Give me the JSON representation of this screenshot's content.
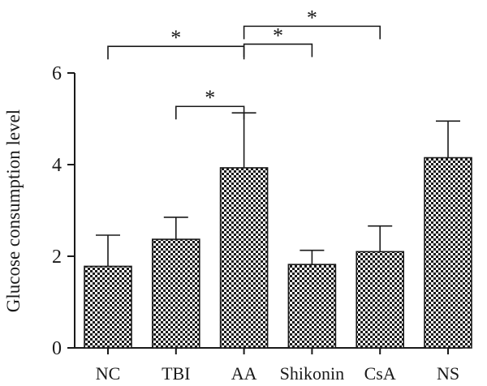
{
  "chart_data": {
    "type": "bar",
    "ylabel": "Glucose consumption level",
    "categories": [
      "NC",
      "TBI",
      "AA",
      "Shikonin",
      "CsA",
      "NS"
    ],
    "values": [
      1.78,
      2.37,
      3.93,
      1.82,
      2.1,
      4.15
    ],
    "error": [
      0.68,
      0.48,
      1.2,
      0.31,
      0.56,
      0.8
    ],
    "ylim": [
      0,
      6
    ],
    "yticks": [
      0,
      2,
      4,
      6
    ],
    "grid": false,
    "bar_pattern": "checkerboard",
    "bar_color": "#1a1a1a",
    "significance": [
      {
        "from": "NC",
        "to": "AA",
        "label": "*",
        "level": 6.58
      },
      {
        "from": "TBI",
        "to": "AA",
        "label": "*",
        "level": 5.27
      },
      {
        "from": "AA",
        "to": "Shikonin",
        "label": "*",
        "level": 6.63
      },
      {
        "from": "AA",
        "to": "CsA",
        "label": "*",
        "level": 7.02
      }
    ]
  }
}
